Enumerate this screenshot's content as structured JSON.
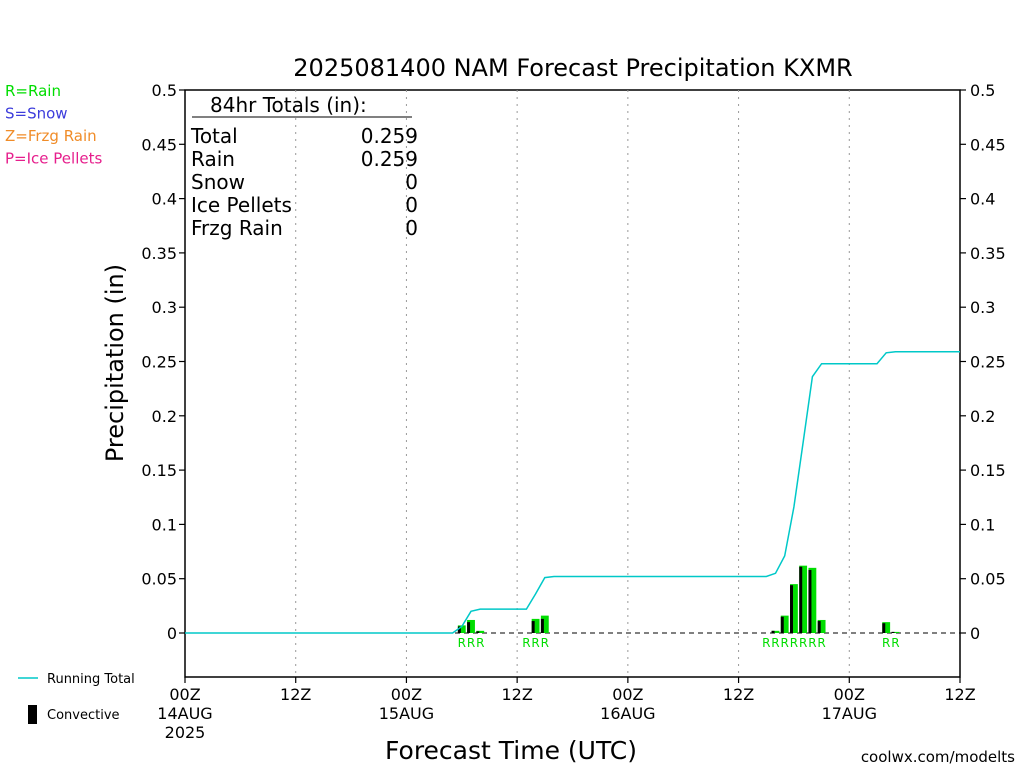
{
  "chart_data": {
    "type": "bar",
    "title": "2025081400 NAM Forecast Precipitation KXMR",
    "xlabel": "Forecast Time (UTC)",
    "ylabel": "Precipitation (in)",
    "ylim": [
      0,
      0.5
    ],
    "xlim_hours": [
      0,
      84
    ],
    "y_ticks": [
      "0",
      "0.05",
      "0.1",
      "0.15",
      "0.2",
      "0.25",
      "0.3",
      "0.35",
      "0.4",
      "0.45",
      "0.5"
    ],
    "x_ticks": [
      {
        "hour": 0,
        "label": "00Z",
        "date": "14AUG",
        "year": "2025"
      },
      {
        "hour": 12,
        "label": "12Z"
      },
      {
        "hour": 24,
        "label": "00Z",
        "date": "15AUG"
      },
      {
        "hour": 36,
        "label": "12Z"
      },
      {
        "hour": 48,
        "label": "00Z",
        "date": "16AUG"
      },
      {
        "hour": 60,
        "label": "12Z"
      },
      {
        "hour": 72,
        "label": "00Z",
        "date": "17AUG"
      },
      {
        "hour": 84,
        "label": "12Z"
      }
    ],
    "grid": "vertical dotted",
    "series": [
      {
        "name": "Running Total",
        "color": "#00c8c8",
        "type": "line",
        "points": [
          [
            0,
            0
          ],
          [
            29,
            0
          ],
          [
            30,
            0.006
          ],
          [
            31,
            0.02
          ],
          [
            32,
            0.022
          ],
          [
            36,
            0.022
          ],
          [
            37,
            0.022
          ],
          [
            38,
            0.036
          ],
          [
            39,
            0.051
          ],
          [
            40,
            0.052
          ],
          [
            53,
            0.052
          ],
          [
            57,
            0.052
          ],
          [
            61,
            0.052
          ],
          [
            63,
            0.052
          ],
          [
            64,
            0.055
          ],
          [
            65,
            0.071
          ],
          [
            66,
            0.116
          ],
          [
            67,
            0.176
          ],
          [
            68,
            0.236
          ],
          [
            69,
            0.248
          ],
          [
            71,
            0.248
          ],
          [
            72,
            0.248
          ],
          [
            75,
            0.248
          ],
          [
            76,
            0.258
          ],
          [
            77,
            0.259
          ],
          [
            84,
            0.259
          ]
        ]
      },
      {
        "name": "Precipitation",
        "color": "#00dd00",
        "type": "bar",
        "points": [
          [
            30,
            0.007
          ],
          [
            31,
            0.012
          ],
          [
            32,
            0.002
          ],
          [
            38,
            0.013
          ],
          [
            39,
            0.016
          ],
          [
            64,
            0.002
          ],
          [
            65,
            0.016
          ],
          [
            66,
            0.045
          ],
          [
            67,
            0.062
          ],
          [
            68,
            0.06
          ],
          [
            69,
            0.012
          ],
          [
            76,
            0.01
          ],
          [
            77,
            0.001
          ]
        ]
      },
      {
        "name": "Convective",
        "color": "#000000",
        "type": "bar",
        "points": [
          [
            30,
            0.006
          ],
          [
            31,
            0.01
          ],
          [
            32,
            0.0015
          ],
          [
            38,
            0.011
          ],
          [
            39,
            0.013
          ],
          [
            64,
            0.002
          ],
          [
            65,
            0.015
          ],
          [
            66,
            0.044
          ],
          [
            67,
            0.061
          ],
          [
            68,
            0.058
          ],
          [
            69,
            0.011
          ],
          [
            76,
            0.009
          ],
          [
            77,
            0.001
          ]
        ]
      }
    ],
    "type_labels": [
      {
        "hour": 30,
        "text": "R"
      },
      {
        "hour": 31,
        "text": "R"
      },
      {
        "hour": 32,
        "text": "R"
      },
      {
        "hour": 37,
        "text": "R"
      },
      {
        "hour": 38,
        "text": "R"
      },
      {
        "hour": 39,
        "text": "R"
      },
      {
        "hour": 63,
        "text": "R"
      },
      {
        "hour": 64,
        "text": "R"
      },
      {
        "hour": 65,
        "text": "R"
      },
      {
        "hour": 66,
        "text": "R"
      },
      {
        "hour": 67,
        "text": "R"
      },
      {
        "hour": 68,
        "text": "R"
      },
      {
        "hour": 69,
        "text": "R"
      },
      {
        "hour": 76,
        "text": "R"
      },
      {
        "hour": 77,
        "text": "R"
      }
    ],
    "type_legend": [
      {
        "text": "R=Rain",
        "color": "#00dd00"
      },
      {
        "text": "S=Snow",
        "color": "#3c3cdc"
      },
      {
        "text": "Z=Frzg Rain",
        "color": "#f08c28"
      },
      {
        "text": "P=Ice Pellets",
        "color": "#e61e8c"
      }
    ],
    "totals": {
      "header": "84hr Totals (in):",
      "rows": [
        {
          "label": "Total",
          "value": "0.259"
        },
        {
          "label": "Rain",
          "value": "0.259"
        },
        {
          "label": "Snow",
          "value": "0"
        },
        {
          "label": "Ice Pellets",
          "value": "0"
        },
        {
          "label": "Frzg Rain",
          "value": "0"
        }
      ]
    },
    "legend_bottom": [
      {
        "text": "Running Total",
        "color": "#00c8c8",
        "symbol": "line"
      },
      {
        "text": "Convective",
        "color": "#000000",
        "symbol": "bar"
      }
    ],
    "credit": {
      "text": "coolwx.com/modelts",
      "color": "#e6283c"
    }
  }
}
